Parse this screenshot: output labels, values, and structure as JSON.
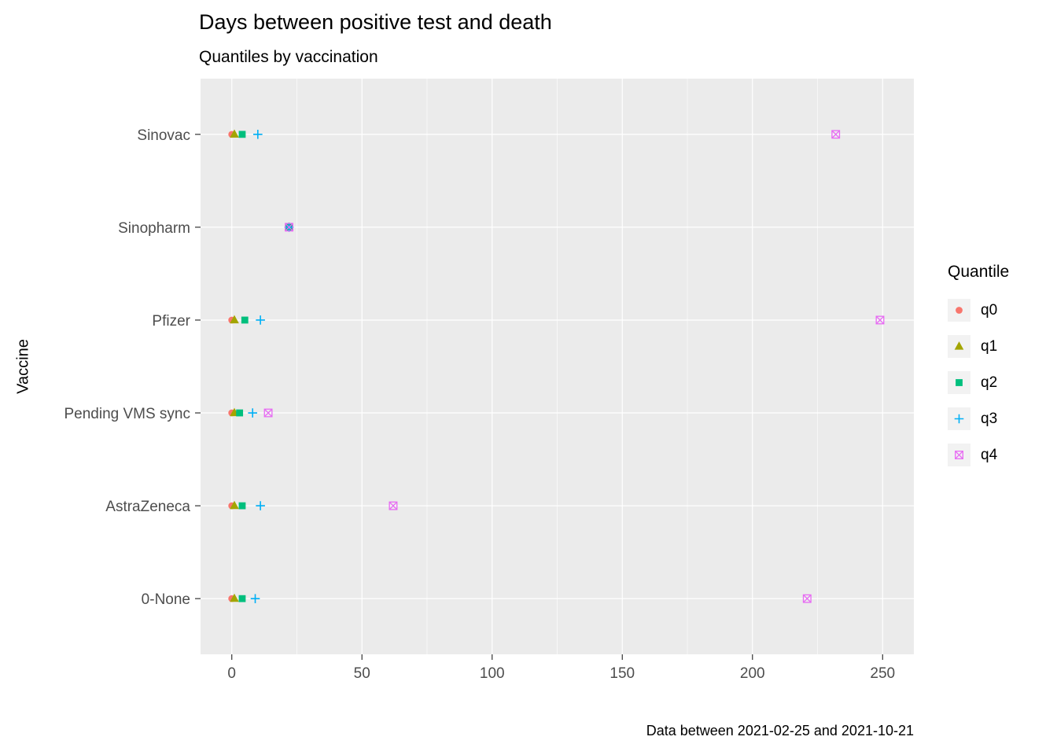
{
  "chart_data": {
    "type": "scatter",
    "title": "Days between positive test and death",
    "subtitle": "Quantiles by vaccination",
    "caption": "Data between 2021-02-25 and 2021-10-21",
    "xlabel": "",
    "ylabel": "Vaccine",
    "legend_title": "Quantile",
    "legend_position": "right",
    "grid": true,
    "panel_bg": "#EBEBEB",
    "grid_color": "#FFFFFF",
    "legend_key_bg": "#F2F2F2",
    "axis_text_color": "#4D4D4D",
    "xlim": [
      -12,
      262
    ],
    "x_ticks": [
      0,
      50,
      100,
      150,
      200,
      250
    ],
    "x_minor_ticks": [
      25,
      75,
      125,
      175,
      225
    ],
    "categories": [
      "0-None",
      "AstraZeneca",
      "Pending VMS sync",
      "Pfizer",
      "Sinopharm",
      "Sinovac"
    ],
    "series": [
      {
        "name": "q0",
        "shape": "circle",
        "color": "#F8766D",
        "values": [
          0,
          0,
          0,
          0,
          22,
          0
        ]
      },
      {
        "name": "q1",
        "shape": "triangle",
        "color": "#A3A500",
        "values": [
          1,
          1,
          1,
          1,
          22,
          1
        ]
      },
      {
        "name": "q2",
        "shape": "square",
        "color": "#00BF7D",
        "values": [
          4,
          4,
          3,
          5,
          22,
          4
        ]
      },
      {
        "name": "q3",
        "shape": "plus",
        "color": "#00B0F6",
        "values": [
          9,
          11,
          8,
          11,
          22,
          10
        ]
      },
      {
        "name": "q4",
        "shape": "box-x",
        "color": "#E76BF3",
        "values": [
          221,
          62,
          14,
          249,
          22,
          232
        ]
      }
    ]
  }
}
